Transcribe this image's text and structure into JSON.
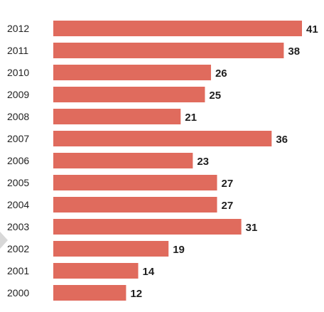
{
  "chart_data": {
    "type": "bar",
    "orientation": "horizontal",
    "title": "",
    "xlabel": "",
    "ylabel": "",
    "categories": [
      "2012",
      "2011",
      "2010",
      "2009",
      "2008",
      "2007",
      "2006",
      "2005",
      "2004",
      "2003",
      "2002",
      "2001",
      "2000"
    ],
    "values": [
      41,
      38,
      26,
      25,
      21,
      36,
      23,
      27,
      27,
      31,
      19,
      14,
      12
    ],
    "xlim": [
      0,
      41
    ],
    "grid": false,
    "bar_color": "#e06b5d",
    "label_color": "#1f1f1f"
  }
}
